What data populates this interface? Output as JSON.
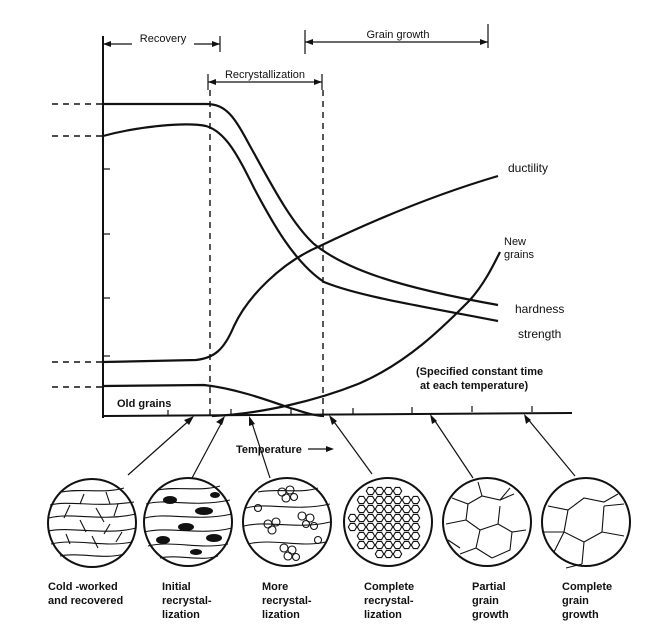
{
  "stages": {
    "recovery": "Recovery",
    "recrystallization": "Recrystallization",
    "grain_growth": "Grain growth"
  },
  "curves": {
    "ductility": "ductility",
    "hardness": "hardness",
    "strength": "strength",
    "new_grains_1": "New",
    "new_grains_2": "grains",
    "old_grains": "Old grains"
  },
  "note": {
    "line1": "(Specified constant time",
    "line2": "at each temperature)"
  },
  "axis": {
    "x_label": "Temperature"
  },
  "microstructures": [
    {
      "line1": "Cold -worked",
      "line2": "and recovered",
      "line3": ""
    },
    {
      "line1": "Initial",
      "line2": "recrystal-",
      "line3": "lization"
    },
    {
      "line1": "More",
      "line2": "recrystal-",
      "line3": "lization"
    },
    {
      "line1": "Complete",
      "line2": "recrystal-",
      "line3": "lization"
    },
    {
      "line1": "Partial",
      "line2": "grain",
      "line3": "growth"
    },
    {
      "line1": "Complete",
      "line2": "grain",
      "line3": "growth"
    }
  ]
}
